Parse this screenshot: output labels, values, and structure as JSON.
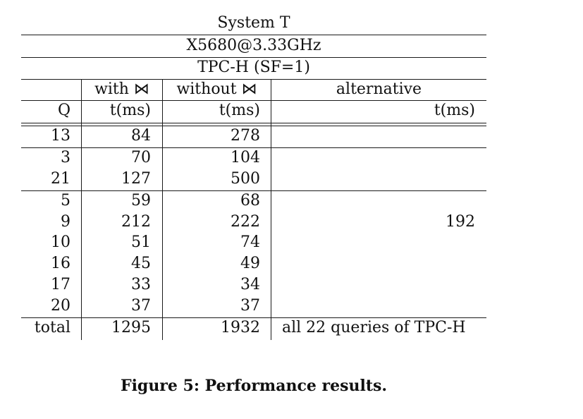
{
  "table": {
    "header": {
      "system": "System T",
      "cpu": "X5680@3.33GHz",
      "benchmark": "TPC-H (SF=1)",
      "col_with": "with ⋈",
      "col_without": "without ⋈",
      "col_alternative": "alternative",
      "col_q": "Q",
      "col_with_unit": "t(ms)",
      "col_without_unit": "t(ms)",
      "col_alternative_unit": "t(ms)"
    },
    "rows": [
      {
        "q": "13",
        "with": "84",
        "without": "278"
      },
      {
        "q": "3",
        "with": "70",
        "without": "104"
      },
      {
        "q": "21",
        "with": "127",
        "without": "500"
      },
      {
        "q": "5",
        "with": "59",
        "without": "68"
      },
      {
        "q": "9",
        "with": "212",
        "without": "222"
      },
      {
        "q": "10",
        "with": "51",
        "without": "74"
      },
      {
        "q": "16",
        "with": "45",
        "without": "49"
      },
      {
        "q": "17",
        "with": "33",
        "without": "34"
      },
      {
        "q": "20",
        "with": "37",
        "without": "37"
      }
    ],
    "alternative_value": "192",
    "total": {
      "label": "total",
      "with": "1295",
      "without": "1932",
      "alternative_note": "all 22 queries of TPC-H"
    }
  },
  "caption": "Figure 5: Performance results."
}
